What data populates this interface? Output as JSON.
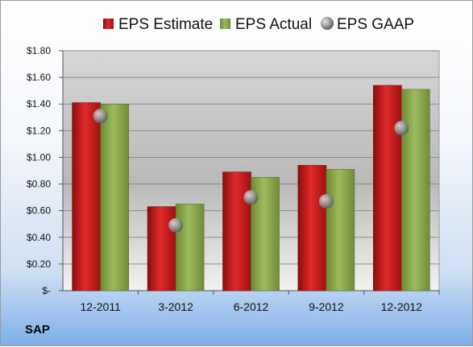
{
  "company": "SAP",
  "colors": {
    "estimate": "#c01818",
    "actual": "#88a848",
    "gaap": "#9a9a9a"
  },
  "chart_data": {
    "type": "bar",
    "categories": [
      "12-2011",
      "3-2012",
      "6-2012",
      "9-2012",
      "12-2012"
    ],
    "series": [
      {
        "name": "EPS Estimate",
        "values": [
          1.41,
          0.63,
          0.89,
          0.94,
          1.54
        ]
      },
      {
        "name": "EPS Actual",
        "values": [
          1.4,
          0.65,
          0.85,
          0.91,
          1.51
        ]
      },
      {
        "name": "EPS GAAP",
        "values": [
          1.31,
          0.49,
          0.7,
          0.67,
          1.22
        ],
        "marker": "circle"
      }
    ],
    "ylim": [
      0,
      1.8
    ],
    "yticks": [
      0,
      0.2,
      0.4,
      0.6,
      0.8,
      1.0,
      1.2,
      1.4,
      1.6,
      1.8
    ],
    "ytick_labels": [
      "$-",
      "$0.20",
      "$0.40",
      "$0.60",
      "$0.80",
      "$1.00",
      "$1.20",
      "$1.40",
      "$1.60",
      "$1.80"
    ],
    "grid": true,
    "legend": "top"
  }
}
